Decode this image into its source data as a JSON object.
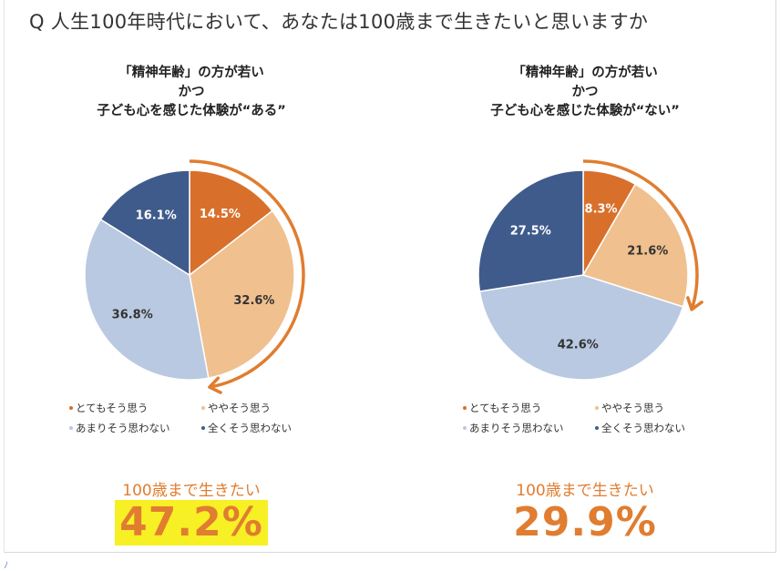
{
  "question": "Q 人生100年時代において、あなたは100歳まで生きたいと思いますか",
  "legend": [
    {
      "label": "とてもそう思う",
      "color": "#d8702b"
    },
    {
      "label": "ややそう思う",
      "color": "#f0c08f"
    },
    {
      "label": "あまりそう思わない",
      "color": "#b9c9e1"
    },
    {
      "label": "全くそう思わない",
      "color": "#3f5b8c"
    }
  ],
  "panels": [
    {
      "title_lines": [
        "「精神年齢」の方が若い",
        "かつ",
        "子ども心を感じた体験が“ある”"
      ],
      "sub_label": "100歳まで生きたい",
      "big_value": "47.2%",
      "highlight": true
    },
    {
      "title_lines": [
        "「精神年齢」の方が若い",
        "かつ",
        "子ども心を感じた体験が“ない”"
      ],
      "sub_label": "100歳まで生きたい",
      "big_value": "29.9%",
      "highlight": false
    }
  ],
  "chart_data": [
    {
      "type": "pie",
      "title": "「精神年齢」の方が若い かつ 子ども心を感じた体験が“ある”",
      "categories": [
        "とてもそう思う",
        "ややそう思う",
        "あまりそう思わない",
        "全くそう思わない"
      ],
      "values": [
        14.5,
        32.6,
        36.8,
        16.1
      ],
      "labels": [
        "14.5%",
        "32.6%",
        "36.8%",
        "16.1%"
      ],
      "colors": [
        "#d8702b",
        "#f0c08f",
        "#b9c9e1",
        "#3f5b8c"
      ],
      "label_colors": [
        "#ffffff",
        "#333333",
        "#333333",
        "#ffffff"
      ],
      "arrow_span_percent": 47.2
    },
    {
      "type": "pie",
      "title": "「精神年齢」の方が若い かつ 子ども心を感じた体験が“ない”",
      "categories": [
        "とてもそう思う",
        "ややそう思う",
        "あまりそう思わない",
        "全くそう思わない"
      ],
      "values": [
        8.3,
        21.6,
        42.6,
        27.5
      ],
      "labels": [
        "8.3%",
        "21.6%",
        "42.6%",
        "27.5%"
      ],
      "colors": [
        "#d8702b",
        "#f0c08f",
        "#b9c9e1",
        "#3f5b8c"
      ],
      "label_colors": [
        "#ffffff",
        "#333333",
        "#333333",
        "#ffffff"
      ],
      "arrow_span_percent": 29.9
    }
  ]
}
